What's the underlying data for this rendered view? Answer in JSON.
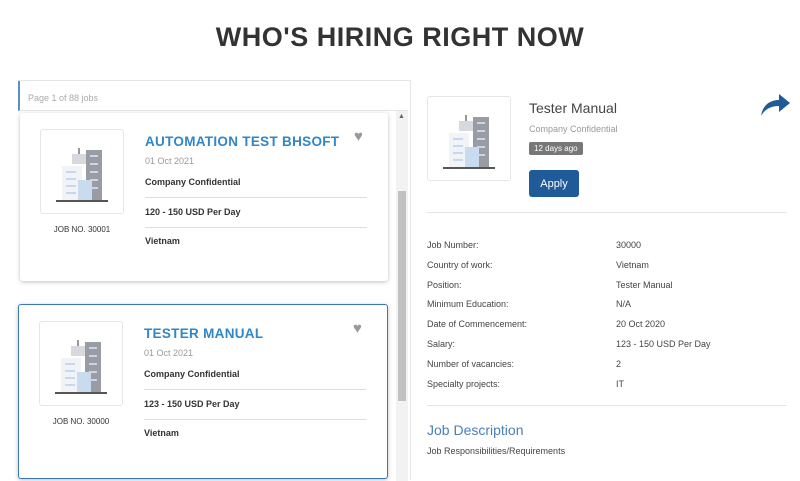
{
  "page_title": "WHO'S HIRING RIGHT NOW",
  "list": {
    "pager": "Page 1 of 88 jobs",
    "jobs": [
      {
        "title": "AUTOMATION TEST BHSOFT",
        "date": "01 Oct 2021",
        "company": "Company Confidential",
        "salary": "120 - 150 USD Per Day",
        "country": "Vietnam",
        "job_no": "JOB NO. 30001",
        "selected": false
      },
      {
        "title": "TESTER MANUAL",
        "date": "01 Oct 2021",
        "company": "Company Confidential",
        "salary": "123 - 150 USD Per Day",
        "country": "Vietnam",
        "job_no": "JOB NO. 30000",
        "selected": true
      }
    ]
  },
  "detail": {
    "title": "Tester Manual",
    "company": "Company Confidential",
    "posted": "12 days ago",
    "apply_label": "Apply",
    "fields": [
      {
        "label": "Job Number:",
        "value": "30000"
      },
      {
        "label": "Country of work:",
        "value": "Vietnam"
      },
      {
        "label": "Position:",
        "value": "Tester Manual"
      },
      {
        "label": "Minimum Education:",
        "value": "N/A"
      },
      {
        "label": "Date of Commencement:",
        "value": "20 Oct 2020"
      },
      {
        "label": "Salary:",
        "value": "123 - 150 USD Per Day"
      },
      {
        "label": "Number of vacancies:",
        "value": "2"
      },
      {
        "label": "Specialty projects:",
        "value": "IT"
      }
    ],
    "description_heading": "Job Description",
    "description_sub": "Job Responsibilities/Requirements"
  },
  "colors": {
    "accent": "#2f86c9",
    "apply": "#1f5a99",
    "share": "#1f5a99"
  },
  "icons": {
    "heart": "heart-icon",
    "share": "share-arrow-icon",
    "logo": "building-icon"
  }
}
